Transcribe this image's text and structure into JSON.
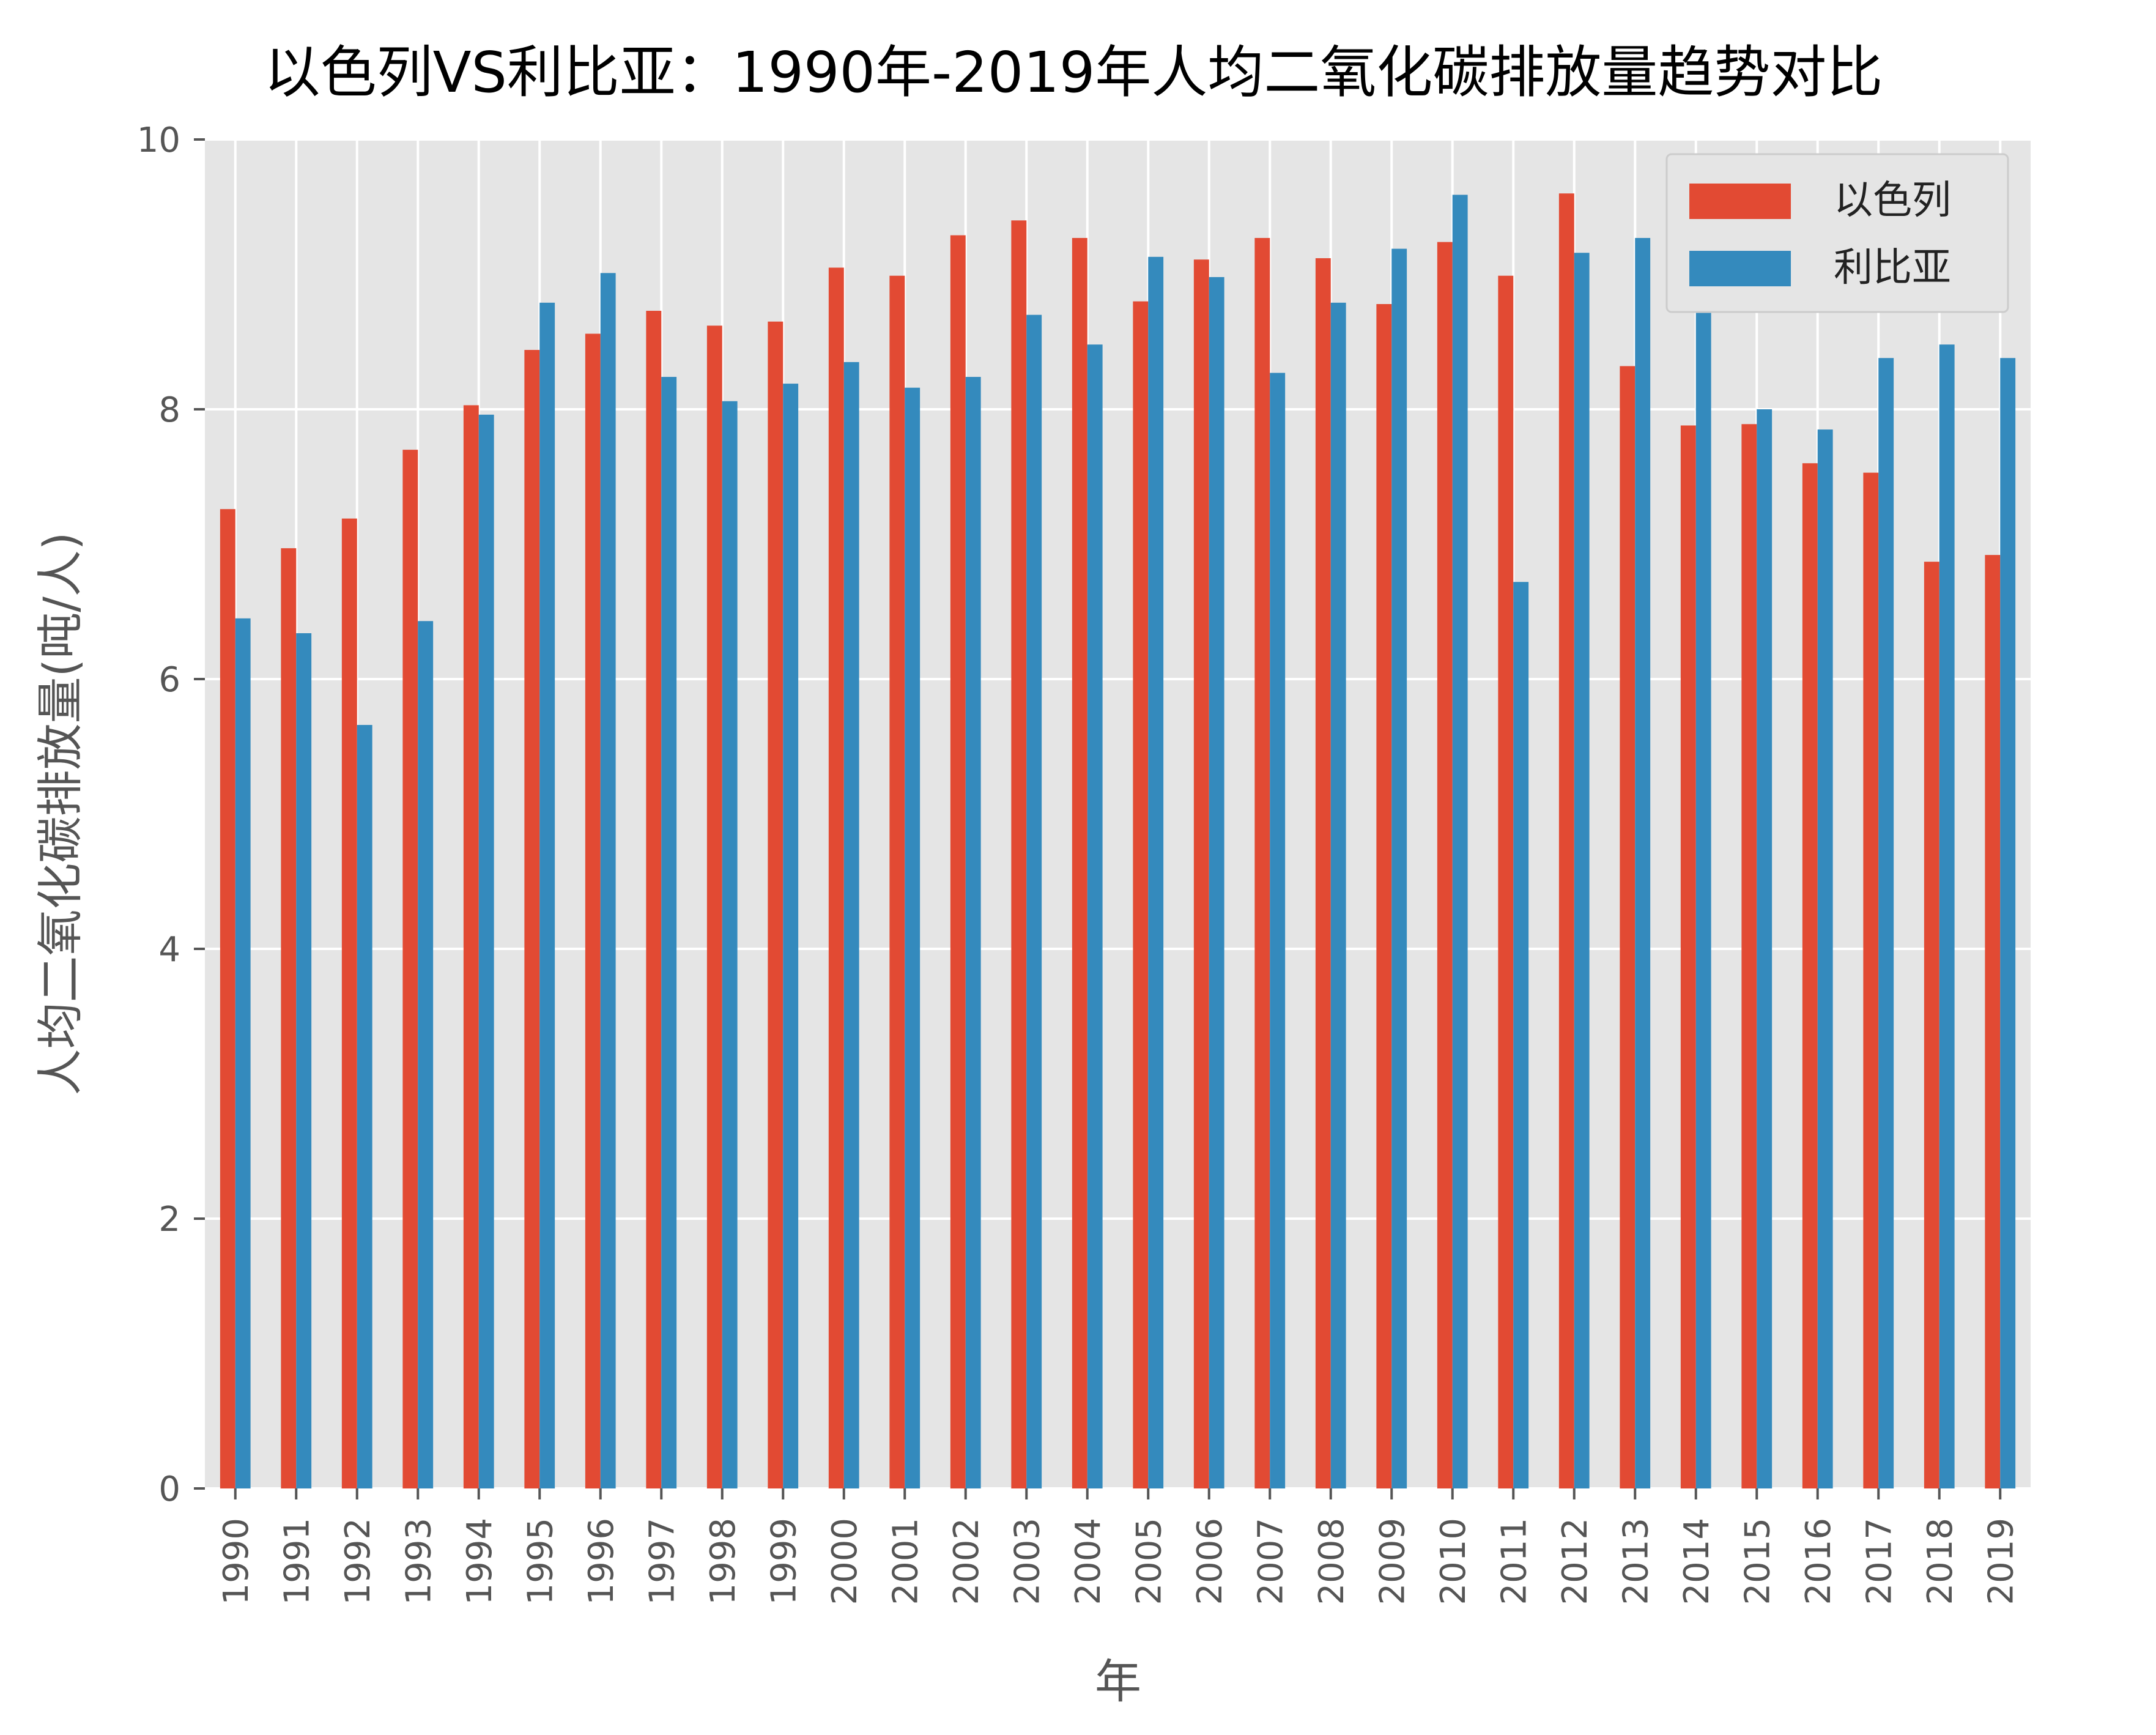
{
  "chart_data": {
    "type": "bar",
    "title": "以色列VS利比亚：1990年-2019年人均二氧化碳排放量趋势对比",
    "xlabel": "年",
    "ylabel": "人均二氧化碳排放量(吨/人)",
    "ylim": [
      0,
      10
    ],
    "yticks": [
      "0",
      "2",
      "4",
      "6",
      "8",
      "10"
    ],
    "grid": true,
    "legend_position": "top-right",
    "categories": [
      "1990",
      "1991",
      "1992",
      "1993",
      "1994",
      "1995",
      "1996",
      "1997",
      "1998",
      "1999",
      "2000",
      "2001",
      "2002",
      "2003",
      "2004",
      "2005",
      "2006",
      "2007",
      "2008",
      "2009",
      "2010",
      "2011",
      "2012",
      "2013",
      "2014",
      "2015",
      "2016",
      "2017",
      "2018",
      "2019"
    ],
    "series": [
      {
        "name": "以色列",
        "color": "#E24A33",
        "values": [
          7.26,
          6.97,
          7.19,
          7.7,
          8.03,
          8.44,
          8.56,
          8.73,
          8.62,
          8.65,
          9.05,
          8.99,
          9.29,
          9.4,
          9.27,
          8.8,
          9.11,
          9.27,
          9.12,
          8.78,
          9.24,
          8.99,
          9.6,
          8.32,
          7.88,
          7.89,
          7.6,
          7.53,
          6.87,
          6.92
        ]
      },
      {
        "name": "利比亚",
        "color": "#348ABD",
        "values": [
          6.45,
          6.34,
          5.66,
          6.43,
          7.96,
          8.79,
          9.01,
          8.24,
          8.06,
          8.19,
          8.35,
          8.16,
          8.24,
          8.7,
          8.48,
          9.13,
          8.98,
          8.27,
          8.79,
          9.19,
          9.59,
          6.72,
          9.16,
          9.27,
          8.9,
          8.0,
          7.85,
          8.38,
          8.48,
          8.38
        ]
      }
    ]
  }
}
